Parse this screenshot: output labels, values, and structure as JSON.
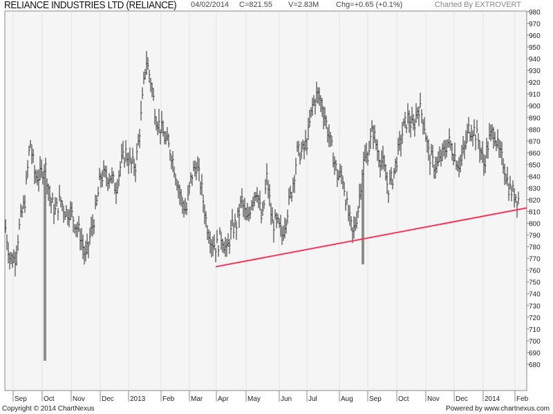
{
  "header": {
    "title": "RELIANCE INDUSTRIES LTD (RELIANCE)",
    "date": "04/02/2014",
    "close": "C=821.55",
    "volume": "V=2.83M",
    "change": "Chg=+0.65 (+0.1%)",
    "credit": "Charted By EXTROVERT"
  },
  "footer": {
    "copyright": "Copyright © 2014 ChartNexus",
    "powered": "Powered by www.chartnexus.com"
  },
  "chart_data": {
    "type": "bar",
    "title": "RELIANCE INDUSTRIES LTD (RELIANCE)",
    "xlabel": "",
    "ylabel": "",
    "ylim": [
      670,
      985
    ],
    "yticks": [
      980,
      970,
      960,
      950,
      940,
      930,
      920,
      910,
      900,
      890,
      880,
      870,
      860,
      850,
      840,
      830,
      820,
      810,
      800,
      790,
      780,
      770,
      760,
      750,
      740,
      730,
      720,
      710,
      700,
      690,
      680
    ],
    "xticks": [
      "Sep",
      "Oct",
      "Nov",
      "Dec",
      "2013",
      "Feb",
      "Mar",
      "Apr",
      "May",
      "Jun",
      "Jul",
      "Aug",
      "Sep",
      "Oct",
      "Nov",
      "Dec",
      "2014",
      "Feb"
    ],
    "approx_weekly_close": [
      800,
      770,
      770,
      800,
      820,
      870,
      840,
      840,
      850,
      820,
      810,
      820,
      810,
      810,
      800,
      790,
      770,
      790,
      810,
      840,
      840,
      840,
      830,
      850,
      860,
      850,
      850,
      890,
      940,
      920,
      890,
      880,
      870,
      860,
      840,
      820,
      810,
      840,
      850,
      830,
      800,
      785,
      780,
      790,
      775,
      795,
      800,
      820,
      800,
      820,
      830,
      800,
      840,
      800,
      800,
      790,
      810,
      830,
      860,
      860,
      870,
      900,
      910,
      900,
      880,
      860,
      840,
      840,
      810,
      790,
      810,
      850,
      860,
      880,
      860,
      850,
      830,
      840,
      860,
      880,
      890,
      880,
      900,
      890,
      860,
      850,
      850,
      860,
      870,
      860,
      850,
      860,
      880,
      880,
      870,
      850,
      870,
      880,
      860,
      850,
      830,
      825,
      820
    ],
    "spikes": [
      {
        "month": "Oct 2012",
        "low": 683
      },
      {
        "month": "Aug 2013",
        "low": 765
      }
    ],
    "trendline": {
      "from": {
        "date": "Apr 2013",
        "value": 763
      },
      "to": {
        "date": "Feb 2014",
        "value": 813
      },
      "color": "#ff3355"
    },
    "last_close": 821.55,
    "bar_color": "#222222"
  }
}
